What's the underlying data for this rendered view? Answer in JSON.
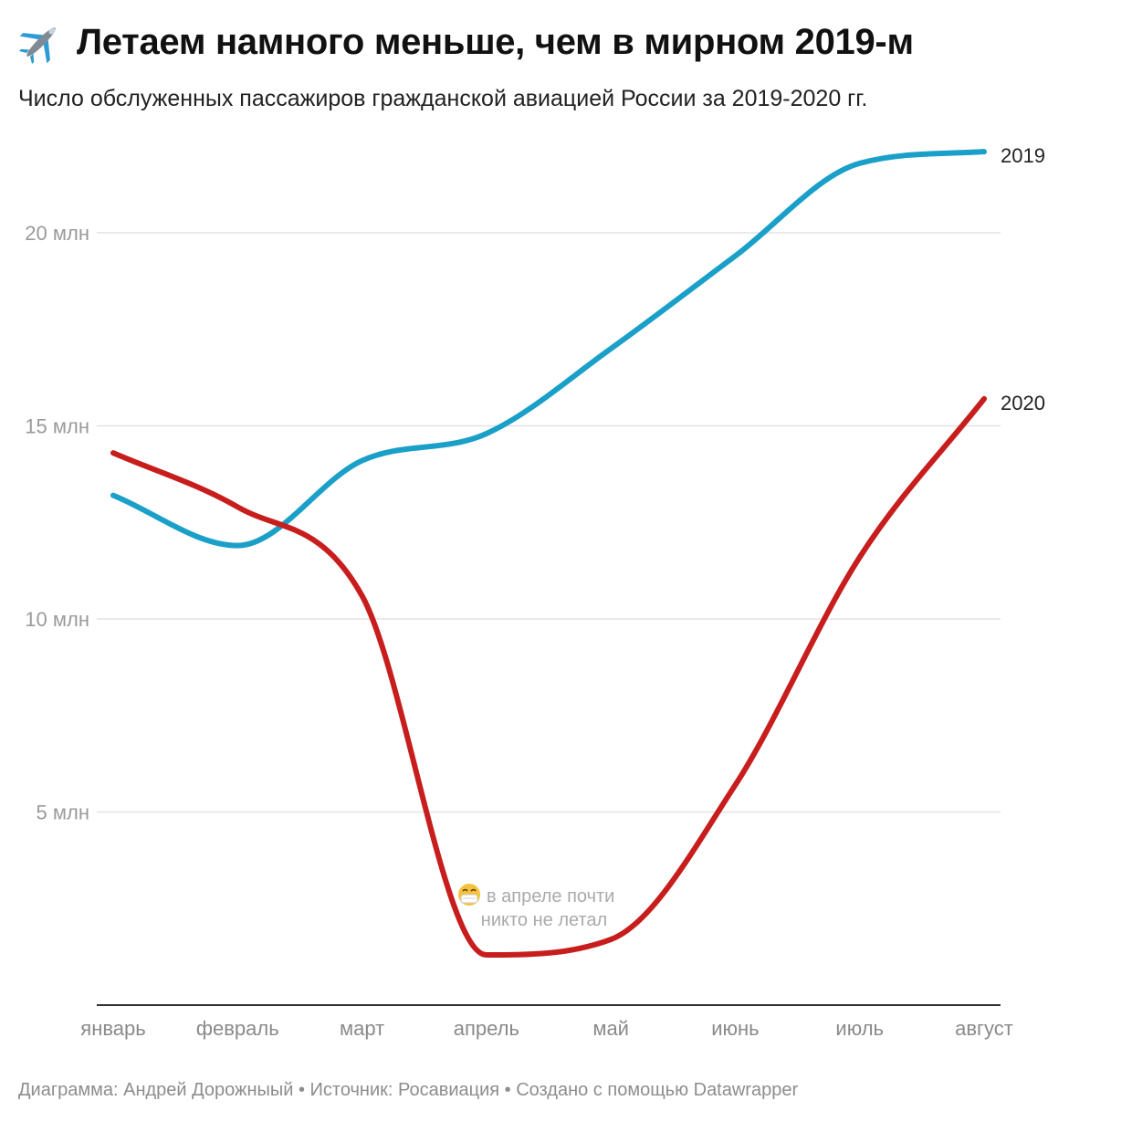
{
  "header": {
    "icon": "airplane-icon",
    "title": "Летаем намного меньше, чем в мирном 2019-м",
    "subtitle": "Число обслуженных пассажиров гражданской авиацией России за 2019-2020 гг."
  },
  "chart_data": {
    "type": "line",
    "categories": [
      "январь",
      "февраль",
      "март",
      "апрель",
      "май",
      "июнь",
      "июль",
      "август"
    ],
    "series": [
      {
        "name": "2019",
        "color": "#1aa0c8",
        "values": [
          13.2,
          11.9,
          14.1,
          14.8,
          17.0,
          19.4,
          21.8,
          22.1
        ]
      },
      {
        "name": "2020",
        "color": "#c71e1d",
        "values": [
          14.3,
          12.9,
          10.6,
          1.3,
          1.7,
          5.7,
          11.6,
          15.7
        ]
      }
    ],
    "y_ticks": [
      {
        "value": 5,
        "label": "5 млн"
      },
      {
        "value": 10,
        "label": "10 млн"
      },
      {
        "value": 15,
        "label": "15 млн"
      },
      {
        "value": 20,
        "label": "20 млн"
      }
    ],
    "ylim": [
      0,
      23
    ],
    "grid": true,
    "annotation": {
      "icon": "face-mask-icon",
      "lines": [
        "в апреле почти",
        "никто не летал"
      ]
    }
  },
  "footer": {
    "credit": "Диаграмма: Андрей Дорожныый • Источник: Росавиация • Создано с помощью Datawrapper"
  }
}
